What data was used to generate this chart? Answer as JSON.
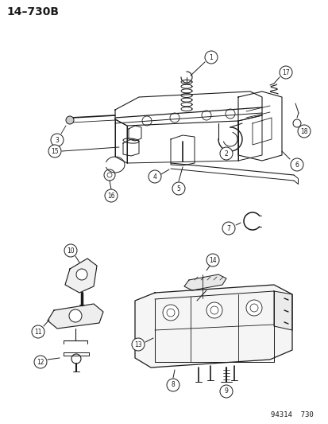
{
  "title": "14–730B",
  "background_color": "#ffffff",
  "line_color": "#1a1a1a",
  "footer_text": "94314  730",
  "fig_width": 4.14,
  "fig_height": 5.33,
  "dpi": 100
}
